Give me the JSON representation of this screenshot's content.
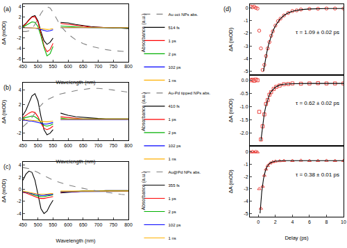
{
  "chart_data": [
    {
      "type": "line",
      "title": "(a)",
      "x_label": "Wavelength (nm)",
      "y_label": "ΔA (mOD)",
      "y2_label": "Absorbance (a.u.)",
      "x": [
        450,
        460,
        470,
        480,
        490,
        500,
        510,
        520,
        530,
        540,
        550,
        560,
        575,
        600,
        625,
        650,
        675,
        700,
        725,
        750,
        775,
        800
      ],
      "xlim": [
        450,
        800
      ],
      "xticks": [
        450,
        500,
        550,
        600,
        650,
        700,
        750,
        800
      ],
      "ylim": [
        -6.5,
        4.5
      ],
      "yticks": [
        -6,
        -4,
        -2,
        0,
        2,
        4
      ],
      "y2lim": [
        0,
        1.05
      ],
      "grid": false,
      "legend": "right",
      "series": [
        {
          "name": "Au oct NPs abs.",
          "color": "#808080",
          "line_style": "dashed",
          "axis": "y2",
          "values": [
            0.55,
            0.55,
            0.56,
            0.6,
            0.68,
            0.78,
            0.88,
            0.96,
            1.0,
            0.98,
            0.9,
            0.8,
            0.65,
            0.5,
            0.4,
            0.33,
            0.28,
            0.25,
            0.22,
            0.2,
            0.19,
            0.18
          ]
        },
        {
          "name": "514 fs",
          "color": "#000000",
          "values": [
            0.3,
            0.8,
            1.5,
            2.1,
            2.3,
            1.3,
            -0.8,
            -2.5,
            -3.2,
            -2.8,
            -2.0,
            null,
            1.0,
            0.9,
            0.6,
            0.4,
            0.2,
            0.1,
            0.0,
            -0.1,
            -0.1,
            -0.2
          ]
        },
        {
          "name": "1 ps",
          "color": "#ff0000",
          "values": [
            0.2,
            0.7,
            1.4,
            2.0,
            2.1,
            1.0,
            -1.2,
            -3.5,
            -4.6,
            -4.2,
            -3.0,
            null,
            0.8,
            0.6,
            0.4,
            0.25,
            0.1,
            0.05,
            0.0,
            -0.05,
            -0.1,
            -0.1
          ]
        },
        {
          "name": "2 ps",
          "color": "#00b000",
          "values": [
            0.1,
            0.4,
            0.8,
            1.1,
            1.0,
            0.2,
            -1.6,
            -3.8,
            -5.4,
            -5.0,
            -3.6,
            null,
            0.3,
            0.2,
            0.1,
            0.05,
            0.0,
            0.0,
            0.0,
            -0.05,
            -0.05,
            -0.05
          ]
        },
        {
          "name": "102 ps",
          "color": "#0000ff",
          "values": [
            0.0,
            0.0,
            0.0,
            0.0,
            -0.1,
            -0.2,
            -0.4,
            -0.6,
            -0.7,
            -0.6,
            -0.4,
            null,
            0.0,
            0.0,
            0.0,
            0.0,
            0.0,
            0.0,
            0.0,
            0.0,
            0.0,
            0.0
          ]
        },
        {
          "name": "1 ns",
          "color": "#ffb000",
          "values": [
            0.0,
            0.0,
            0.0,
            0.0,
            -0.05,
            -0.1,
            -0.2,
            -0.3,
            -0.35,
            -0.3,
            -0.2,
            null,
            0.0,
            0.0,
            0.0,
            0.0,
            0.0,
            0.0,
            0.0,
            0.0,
            0.0,
            0.0
          ]
        }
      ]
    },
    {
      "type": "line",
      "title": "(b)",
      "x_label": "Wavelength (nm)",
      "y_label": "ΔA (mOD)",
      "y2_label": "Absorbance (a.u.)",
      "x": [
        450,
        460,
        470,
        480,
        490,
        500,
        510,
        520,
        530,
        540,
        550,
        560,
        575,
        600,
        625,
        650,
        675,
        700,
        725,
        750,
        775,
        800
      ],
      "xlim": [
        450,
        800
      ],
      "xticks": [
        450,
        500,
        550,
        600,
        650,
        700,
        750,
        800
      ],
      "ylim": [
        -3,
        5
      ],
      "yticks": [
        -2,
        0,
        2,
        4
      ],
      "y2lim": [
        0,
        1.05
      ],
      "grid": false,
      "legend": "right",
      "series": [
        {
          "name": "Au-Pd tipped NPs abs.",
          "color": "#808080",
          "line_style": "dashed",
          "axis": "y2",
          "values": [
            0.25,
            0.3,
            0.35,
            0.42,
            0.5,
            0.58,
            0.64,
            0.7,
            0.74,
            0.77,
            0.8,
            0.82,
            0.85,
            0.88,
            0.91,
            0.93,
            0.95,
            0.95,
            0.94,
            0.92,
            0.9,
            0.88
          ]
        },
        {
          "name": "410 fs",
          "color": "#000000",
          "values": [
            0.5,
            1.2,
            2.2,
            3.2,
            3.5,
            2.5,
            0.3,
            -1.5,
            -2.2,
            -2.0,
            -1.5,
            null,
            0.8,
            0.5,
            0.3,
            0.2,
            0.1,
            0.05,
            0.0,
            0.0,
            0.0,
            0.0
          ]
        },
        {
          "name": "1 ps",
          "color": "#ff0000",
          "values": [
            0.2,
            0.5,
            0.8,
            1.0,
            0.9,
            0.3,
            -0.6,
            -1.3,
            -1.5,
            -1.3,
            -1.0,
            null,
            0.3,
            0.2,
            0.1,
            0.0,
            0.0,
            0.0,
            0.0,
            0.0,
            0.0,
            0.0
          ]
        },
        {
          "name": "2 ps",
          "color": "#00b000",
          "values": [
            0.1,
            0.2,
            0.3,
            0.4,
            0.3,
            0.0,
            -0.5,
            -0.9,
            -1.0,
            -0.9,
            -0.7,
            null,
            0.1,
            0.0,
            0.0,
            0.0,
            0.0,
            0.0,
            0.0,
            0.0,
            0.0,
            0.0
          ]
        },
        {
          "name": "102 ps",
          "color": "#0000ff",
          "values": [
            -0.2,
            -0.2,
            -0.3,
            -0.3,
            -0.4,
            -0.5,
            -0.6,
            -0.7,
            -0.7,
            -0.6,
            -0.5,
            null,
            -0.1,
            -0.1,
            -0.1,
            -0.1,
            -0.1,
            -0.1,
            -0.1,
            -0.1,
            -0.1,
            -0.1
          ]
        },
        {
          "name": "1 ns",
          "color": "#ffb000",
          "values": [
            -0.1,
            -0.1,
            -0.15,
            -0.2,
            -0.25,
            -0.3,
            -0.35,
            -0.4,
            -0.4,
            -0.35,
            -0.3,
            null,
            -0.05,
            -0.05,
            -0.05,
            -0.05,
            -0.05,
            -0.05,
            -0.05,
            -0.05,
            -0.05,
            -0.05
          ]
        }
      ]
    },
    {
      "type": "line",
      "title": "(c)",
      "x_label": "Wavelength (nm)",
      "y_label": "ΔA (mOD)",
      "y2_label": "Absorbance (a.u.)",
      "x": [
        450,
        460,
        470,
        480,
        490,
        500,
        510,
        520,
        530,
        540,
        550,
        560,
        575,
        600,
        625,
        650,
        675,
        700,
        725,
        750,
        775,
        800
      ],
      "xlim": [
        450,
        800
      ],
      "xticks": [
        450,
        500,
        550,
        600,
        650,
        700,
        750,
        800
      ],
      "ylim": [
        -5,
        4.5
      ],
      "yticks": [
        -4,
        -2,
        0,
        2,
        4
      ],
      "y2lim": [
        0,
        1.05
      ],
      "grid": false,
      "legend": "right",
      "series": [
        {
          "name": "Au@Pd NPs abs.",
          "color": "#808080",
          "line_style": "dashed",
          "axis": "y2",
          "values": [
            0.95,
            0.94,
            0.93,
            0.91,
            0.89,
            0.86,
            0.83,
            0.8,
            0.77,
            0.75,
            0.72,
            0.7,
            0.67,
            0.63,
            0.6,
            0.57,
            0.54,
            0.52,
            0.5,
            0.48,
            0.46,
            0.45
          ]
        },
        {
          "name": "355 fs",
          "color": "#000000",
          "values": [
            1.5,
            2.5,
            3.0,
            2.8,
            1.5,
            -1.0,
            -3.2,
            -4.0,
            -3.6,
            -2.6,
            -1.8,
            null,
            -0.6,
            -0.5,
            -0.4,
            -0.3,
            -0.3,
            -0.3,
            -0.2,
            -0.2,
            -0.2,
            -0.2
          ]
        },
        {
          "name": "1 ps",
          "color": "#ff0000",
          "values": [
            -0.5,
            -0.6,
            -0.8,
            -1.0,
            -1.2,
            -1.4,
            -1.5,
            -1.5,
            -1.4,
            -1.3,
            -1.2,
            null,
            -0.5,
            -0.4,
            -0.4,
            -0.3,
            -0.3,
            -0.3,
            -0.3,
            -0.3,
            -0.3,
            -0.3
          ]
        },
        {
          "name": "2 ps",
          "color": "#00b000",
          "values": [
            -0.4,
            -0.5,
            -0.6,
            -0.8,
            -1.0,
            -1.1,
            -1.2,
            -1.2,
            -1.1,
            -1.0,
            -0.9,
            null,
            -0.4,
            -0.35,
            -0.3,
            -0.3,
            -0.3,
            -0.3,
            -0.3,
            -0.3,
            -0.3,
            -0.3
          ]
        },
        {
          "name": "102 ps",
          "color": "#0000ff",
          "values": [
            -0.4,
            -0.5,
            -0.6,
            -0.7,
            -0.8,
            -0.9,
            -1.0,
            -1.0,
            -0.9,
            -0.9,
            -0.8,
            null,
            -0.4,
            -0.4,
            -0.35,
            -0.35,
            -0.35,
            -0.35,
            -0.35,
            -0.35,
            -0.35,
            -0.35
          ]
        },
        {
          "name": "1 ns",
          "color": "#ffb000",
          "values": [
            -0.3,
            -0.4,
            -0.5,
            -0.6,
            -0.7,
            -0.8,
            -0.8,
            -0.8,
            -0.8,
            -0.7,
            -0.7,
            null,
            -0.3,
            -0.3,
            -0.3,
            -0.3,
            -0.3,
            -0.3,
            -0.3,
            -0.3,
            -0.3,
            -0.3
          ]
        }
      ]
    },
    {
      "type": "scatter",
      "title": "(d)",
      "y_label": "ΔA (mOD)",
      "annotations": [
        "τ = 1.09 ± 0.02 ps"
      ],
      "xlim": [
        -1,
        10
      ],
      "ylim": [
        -5.3,
        0.3
      ],
      "yticks": [
        0,
        -1,
        -2,
        -3,
        -4,
        -5
      ],
      "grid": false,
      "tick_labels": "y",
      "series": [
        {
          "type": "scatter",
          "marker": "circle",
          "color": "#e8302a",
          "x": [
            -0.9,
            -0.7,
            -0.5,
            -0.3,
            -0.1,
            0.1,
            0.3,
            0.5,
            0.7,
            0.9,
            1.1,
            1.3,
            1.5,
            1.7,
            2.0,
            2.3,
            2.6,
            3.0,
            3.5,
            4.0,
            4.5,
            5.0,
            6.0,
            7.0,
            8.0,
            9.0,
            10.0
          ],
          "values": [
            0.1,
            0.05,
            0.1,
            0.0,
            -0.05,
            -1.8,
            -3.2,
            -4.9,
            -4.5,
            -3.8,
            -3.2,
            -2.7,
            -2.2,
            -1.85,
            -1.4,
            -1.05,
            -0.85,
            -0.6,
            -0.4,
            -0.25,
            -0.2,
            -0.13,
            -0.08,
            -0.07,
            -0.05,
            -0.05,
            -0.05
          ]
        },
        {
          "type": "line",
          "color": "#000000",
          "x": [
            0.6,
            0.8,
            1.0,
            1.2,
            1.4,
            1.6,
            1.8,
            2.0,
            2.5,
            3.0,
            3.5,
            4.0,
            5.0,
            6.0,
            8.0,
            10.0
          ],
          "values": [
            -5.0,
            -4.17,
            -3.48,
            -2.91,
            -2.43,
            -2.03,
            -1.7,
            -1.42,
            -0.92,
            -0.6,
            -0.4,
            -0.27,
            -0.14,
            -0.085,
            -0.053,
            -0.05
          ]
        }
      ]
    },
    {
      "type": "scatter",
      "y_label": "ΔA (mOD)",
      "annotations": [
        "τ = 0.62 ± 0.02 ps"
      ],
      "xlim": [
        -1,
        10
      ],
      "ylim": [
        -2.5,
        0.2
      ],
      "yticks": [
        {
          "value": 0,
          "label": "0.0"
        },
        -0.5,
        {
          "value": -1,
          "label": "-1.0"
        },
        -1.5,
        {
          "value": -2,
          "label": "-2.0"
        }
      ],
      "grid": false,
      "tick_labels": "y",
      "series": [
        {
          "type": "scatter",
          "marker": "square",
          "color": "#e8302a",
          "x": [
            -0.9,
            -0.7,
            -0.5,
            -0.3,
            -0.1,
            0.1,
            0.3,
            0.5,
            0.7,
            0.9,
            1.1,
            1.3,
            1.5,
            1.8,
            2.1,
            2.5,
            3.0,
            3.5,
            4.0,
            5.0,
            6.0,
            7.0,
            8.0,
            9.0,
            10.0
          ],
          "values": [
            0.0,
            0.02,
            -0.02,
            0.03,
            0.0,
            -1.2,
            -2.25,
            -1.75,
            -1.3,
            -0.9,
            -0.75,
            -0.55,
            -0.45,
            -0.33,
            -0.25,
            -0.2,
            -0.15,
            -0.14,
            -0.12,
            -0.13,
            -0.12,
            -0.11,
            -0.12,
            -0.12,
            -0.12
          ]
        },
        {
          "type": "line",
          "color": "#000000",
          "x": [
            0.3,
            0.5,
            0.7,
            0.9,
            1.1,
            1.3,
            1.5,
            2.0,
            2.5,
            3.0,
            4.0,
            6.0,
            10.0
          ],
          "values": [
            -2.3,
            -1.7,
            -1.26,
            -0.95,
            -0.72,
            -0.55,
            -0.43,
            -0.26,
            -0.18,
            -0.15,
            -0.13,
            -0.12,
            -0.12
          ]
        }
      ]
    },
    {
      "type": "scatter",
      "x_label": "Delay (ps)",
      "y_label": "ΔA (mOD)",
      "annotations": [
        "τ = 0.38 ± 0.01 ps"
      ],
      "xlim": [
        -1,
        10
      ],
      "xticks": [
        0,
        2,
        4,
        6,
        8,
        10
      ],
      "ylim": [
        -5.3,
        0.5
      ],
      "yticks": [
        0,
        -1,
        -2,
        -3,
        -4,
        -5
      ],
      "grid": false,
      "series": [
        {
          "type": "scatter",
          "marker": "triangle",
          "color": "#e8302a",
          "x": [
            -0.9,
            -0.7,
            -0.5,
            -0.3,
            -0.1,
            0.1,
            0.3,
            0.5,
            0.7,
            0.9,
            1.1,
            1.4,
            1.7,
            2.0,
            2.5,
            3.0,
            4.0,
            5.0,
            6.0,
            7.0,
            8.0,
            9.0,
            10.0
          ],
          "values": [
            0.0,
            0.05,
            0.0,
            0.05,
            0.0,
            -3.0,
            -4.6,
            -2.8,
            -1.9,
            -1.4,
            -1.1,
            -0.9,
            -0.8,
            -0.75,
            -0.72,
            -0.7,
            -0.7,
            -0.68,
            -0.7,
            -0.7,
            -0.69,
            -0.7,
            -0.7
          ]
        },
        {
          "type": "line",
          "color": "#000000",
          "x": [
            0.2,
            0.4,
            0.6,
            0.8,
            1.0,
            1.2,
            1.5,
            2.0,
            3.0,
            10.0
          ],
          "values": [
            -5.0,
            -3.24,
            -2.2,
            -1.59,
            -1.22,
            -1.01,
            -0.84,
            -0.74,
            -0.7,
            -0.7
          ]
        }
      ]
    }
  ]
}
